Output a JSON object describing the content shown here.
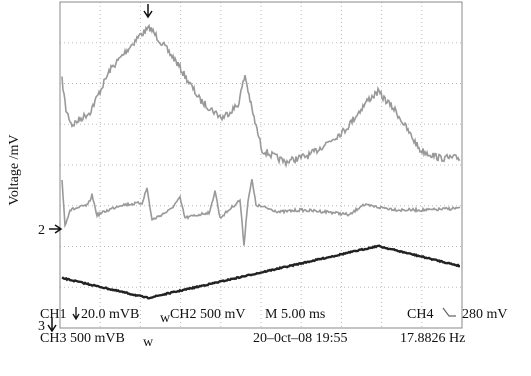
{
  "y_label": "Voltage /mV",
  "markers": {
    "ch2": "2",
    "ch3": "3"
  },
  "status": {
    "line1": {
      "ch1": "CH1",
      "ch1_scale": "20.0 mVB",
      "ch1_sub": "w",
      "ch2": "CH2 500 mV",
      "timebase": "M 5.00 ms",
      "ch4": "CH4",
      "trigger_level": "280 mV"
    },
    "line2": {
      "ch3": "CH3 500 mVB",
      "ch3_sub": "w",
      "datetime": "20–0ct–08 19:55",
      "frequency": "17.8826 Hz"
    }
  }
}
